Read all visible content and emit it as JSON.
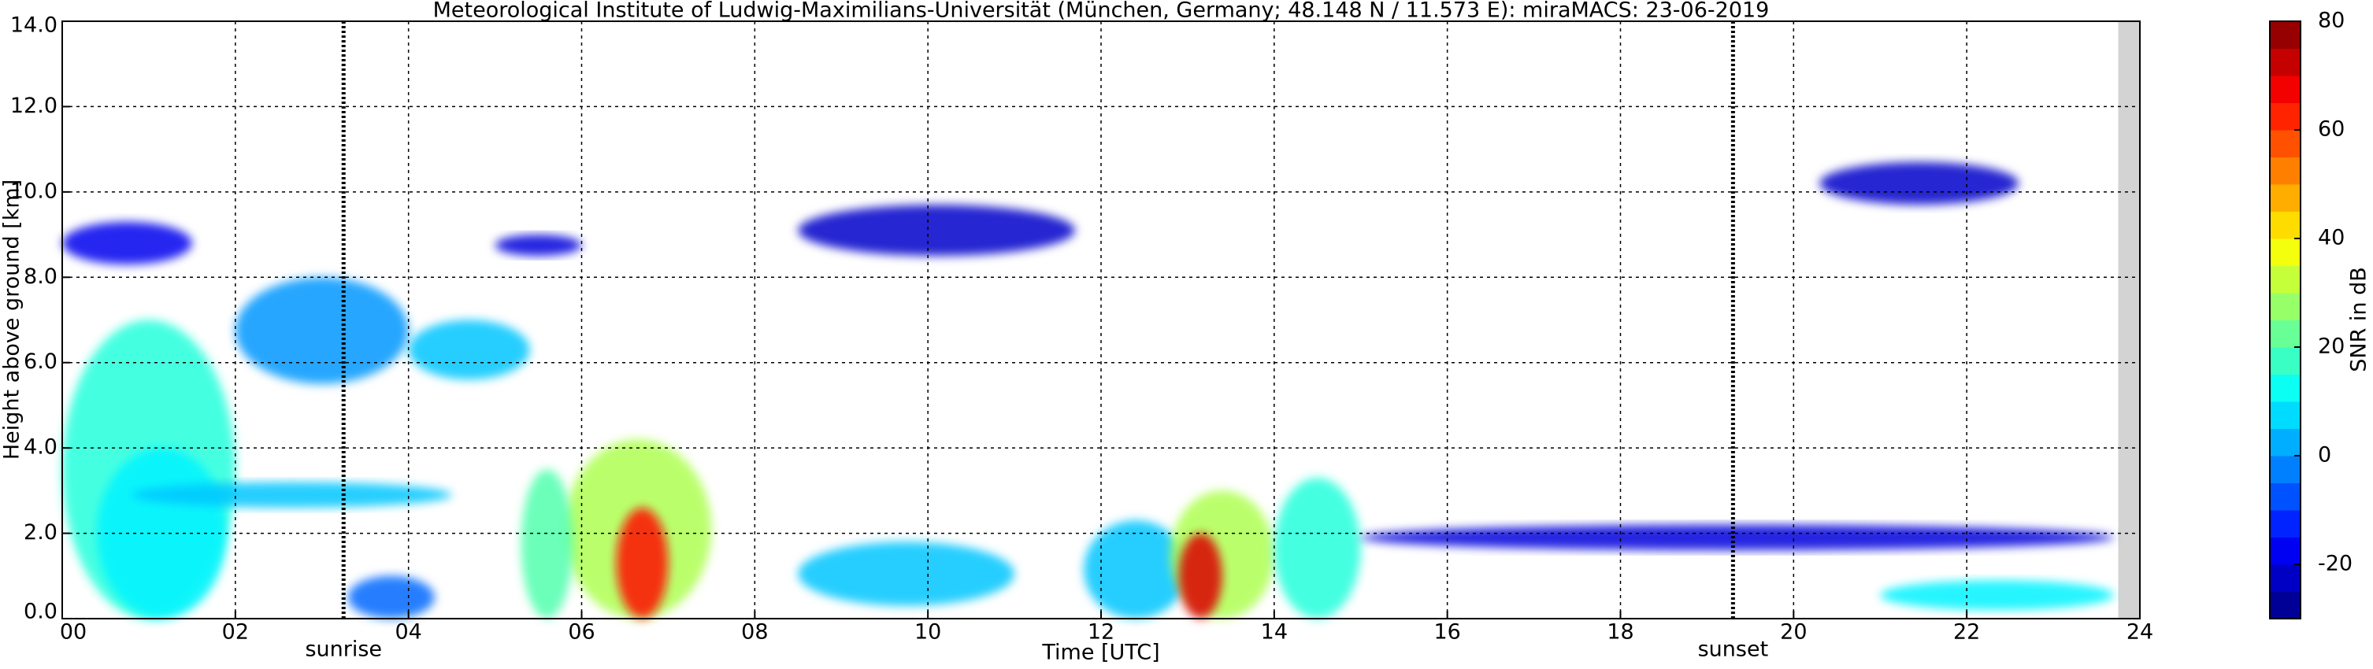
{
  "chart_data": {
    "type": "heatmap",
    "title": "Meteorological Institute of Ludwig-Maximilians-Universität (München, Germany; 48.148 N / 11.573 E):    miraMACS: 23-06-2019",
    "x_label": "Time [UTC]",
    "y_label": "Height above ground [km]",
    "colorbar_label": "SNR in dB",
    "xlim": [
      0,
      24
    ],
    "ylim": [
      0,
      14
    ],
    "xticks": [
      {
        "value": 0,
        "label": "00"
      },
      {
        "value": 2,
        "label": "02"
      },
      {
        "value": 4,
        "label": "04"
      },
      {
        "value": 6,
        "label": "06"
      },
      {
        "value": 8,
        "label": "08"
      },
      {
        "value": 10,
        "label": "10"
      },
      {
        "value": 12,
        "label": "12"
      },
      {
        "value": 14,
        "label": "14"
      },
      {
        "value": 16,
        "label": "16"
      },
      {
        "value": 18,
        "label": "18"
      },
      {
        "value": 20,
        "label": "20"
      },
      {
        "value": 22,
        "label": "22"
      },
      {
        "value": 24,
        "label": "24"
      }
    ],
    "yticks": [
      {
        "value": 0,
        "label": "0.0"
      },
      {
        "value": 2,
        "label": "2.0"
      },
      {
        "value": 4,
        "label": "4.0"
      },
      {
        "value": 6,
        "label": "6.0"
      },
      {
        "value": 8,
        "label": "8.0"
      },
      {
        "value": 10,
        "label": "10.0"
      },
      {
        "value": 12,
        "label": "12.0"
      },
      {
        "value": 14,
        "label": "14.0"
      }
    ],
    "clim": [
      -30,
      80
    ],
    "cticks": [
      -20,
      0,
      20,
      40,
      60,
      80
    ],
    "grid": true,
    "no_data_from": 23.75,
    "markers": [
      {
        "label": "sunrise",
        "x": 3.25
      },
      {
        "label": "sunset",
        "x": 19.3
      }
    ],
    "echoes": [
      {
        "x": [
          0,
          1.5
        ],
        "y": [
          8.3,
          9.3
        ],
        "snr": -18
      },
      {
        "x": [
          2,
          4
        ],
        "y": [
          5.5,
          8
        ],
        "snr": 0
      },
      {
        "x": [
          4,
          5.4
        ],
        "y": [
          5.6,
          7
        ],
        "snr": 5
      },
      {
        "x": [
          0,
          2
        ],
        "y": [
          0,
          7
        ],
        "snr": 15
      },
      {
        "x": [
          0.4,
          1.9
        ],
        "y": [
          0,
          4
        ],
        "snr": 10
      },
      {
        "x": [
          0.8,
          4.5
        ],
        "y": [
          2.6,
          3.2
        ],
        "snr": 5
      },
      {
        "x": [
          5.8,
          7.5
        ],
        "y": [
          0,
          4.2
        ],
        "snr": 30
      },
      {
        "x": [
          6.4,
          7
        ],
        "y": [
          0,
          2.6
        ],
        "snr": 65
      },
      {
        "x": [
          5.3,
          5.9
        ],
        "y": [
          0,
          3.5
        ],
        "snr": 20
      },
      {
        "x": [
          8.5,
          11.7
        ],
        "y": [
          8.5,
          9.7
        ],
        "snr": -22
      },
      {
        "x": [
          5,
          6
        ],
        "y": [
          8.5,
          9
        ],
        "snr": -20
      },
      {
        "x": [
          11.8,
          13
        ],
        "y": [
          0,
          2.3
        ],
        "snr": 5
      },
      {
        "x": [
          12.8,
          14
        ],
        "y": [
          0,
          3
        ],
        "snr": 30
      },
      {
        "x": [
          12.9,
          13.4
        ],
        "y": [
          0,
          2
        ],
        "snr": 70
      },
      {
        "x": [
          14,
          15
        ],
        "y": [
          0,
          3.3
        ],
        "snr": 15
      },
      {
        "x": [
          20.3,
          22.6
        ],
        "y": [
          9.7,
          10.7
        ],
        "snr": -22
      },
      {
        "x": [
          21,
          23.7
        ],
        "y": [
          0.2,
          0.9
        ],
        "snr": 10
      },
      {
        "x": [
          3.3,
          4.3
        ],
        "y": [
          0,
          1
        ],
        "snr": -5
      },
      {
        "x": [
          8.5,
          11
        ],
        "y": [
          0.3,
          1.8
        ],
        "snr": 5
      },
      {
        "x": [
          15,
          23.7
        ],
        "y": [
          1.6,
          2.2
        ],
        "snr": -20
      }
    ]
  }
}
